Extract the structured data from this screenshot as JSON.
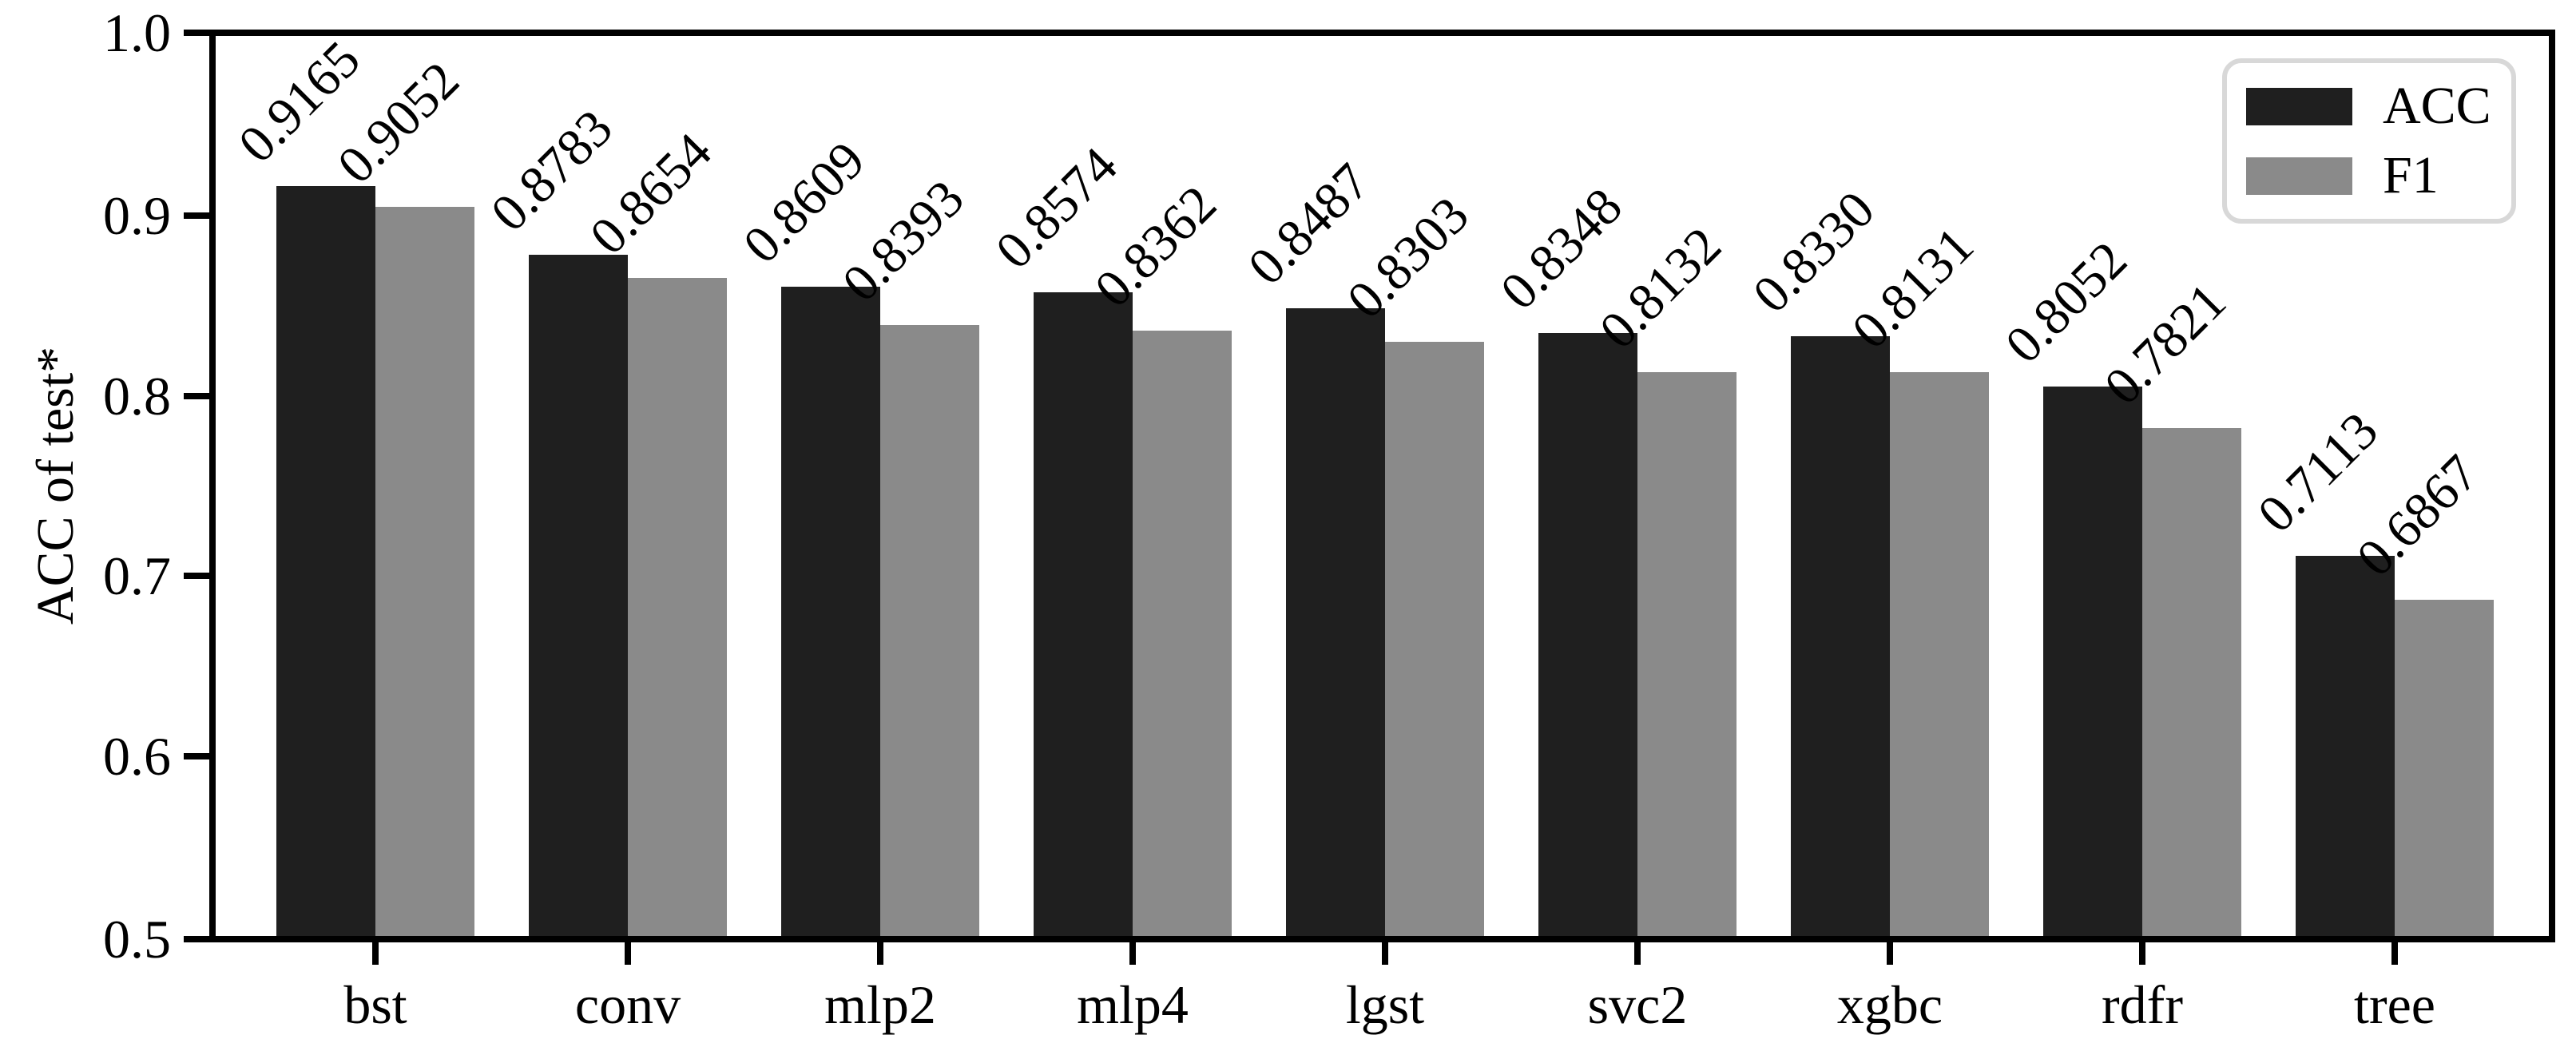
{
  "figure": {
    "background": "#ffffff",
    "text_color": "#000000",
    "spine_color": "#000000",
    "legend_border_color": "#d8d8d8"
  },
  "chart_data": {
    "type": "bar",
    "title": "",
    "xlabel": "",
    "ylabel": "ACC of test*",
    "categories": [
      "bst",
      "conv",
      "mlp2",
      "mlp4",
      "lgst",
      "svc2",
      "xgbc",
      "rdfr",
      "tree"
    ],
    "series": [
      {
        "name": "ACC",
        "color": "#1f1f1f",
        "values": [
          0.9165,
          0.8783,
          0.8609,
          0.8574,
          0.8487,
          0.8348,
          0.833,
          0.8052,
          0.7113
        ],
        "labels": [
          "0.9165",
          "0.8783",
          "0.8609",
          "0.8574",
          "0.8487",
          "0.8348",
          "0.8330",
          "0.8052",
          "0.7113"
        ]
      },
      {
        "name": "F1",
        "color": "#8a8a8a",
        "values": [
          0.9052,
          0.8654,
          0.8393,
          0.8362,
          0.8303,
          0.8132,
          0.8131,
          0.7821,
          0.6867
        ],
        "labels": [
          "0.9052",
          "0.8654",
          "0.8393",
          "0.8362",
          "0.8303",
          "0.8132",
          "0.8131",
          "0.7821",
          "0.6867"
        ]
      }
    ],
    "ylim": [
      0.5,
      1.0
    ],
    "yticks": [
      1.0,
      0.9,
      0.8,
      0.7,
      0.6,
      0.5
    ],
    "ytick_labels": [
      "1.0",
      "0.9",
      "0.8",
      "0.7",
      "0.6",
      "0.5"
    ],
    "bar_label_rotation_deg": 45,
    "grid": false,
    "legend": {
      "position": "top-right",
      "entries": [
        "ACC",
        "F1"
      ]
    }
  }
}
